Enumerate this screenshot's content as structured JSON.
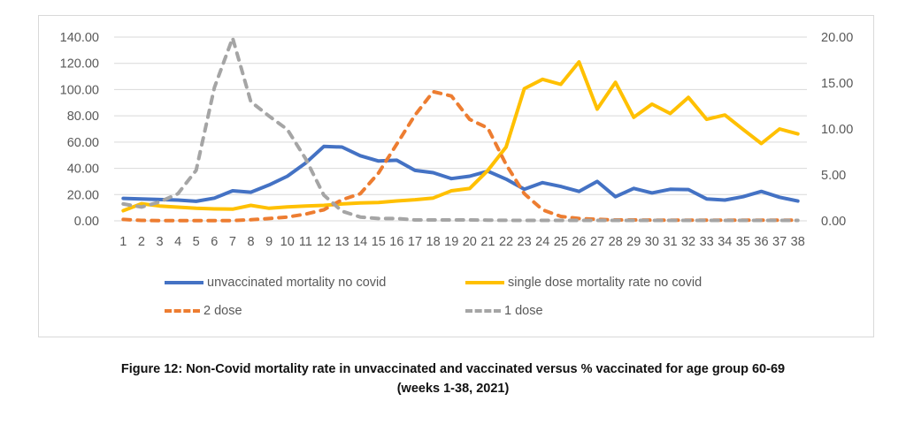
{
  "chart_data": {
    "type": "line",
    "title": "",
    "xlabel": "",
    "ylabel": "",
    "y2label": "",
    "categories": [
      "1",
      "2",
      "3",
      "4",
      "5",
      "6",
      "7",
      "8",
      "9",
      "10",
      "11",
      "12",
      "13",
      "14",
      "15",
      "16",
      "17",
      "18",
      "19",
      "20",
      "21",
      "22",
      "23",
      "24",
      "25",
      "26",
      "27",
      "28",
      "29",
      "30",
      "31",
      "32",
      "33",
      "34",
      "35",
      "36",
      "37",
      "38"
    ],
    "ylim": [
      0,
      140
    ],
    "y2lim": [
      0,
      20
    ],
    "yticks": [
      "0.00",
      "20.00",
      "40.00",
      "60.00",
      "80.00",
      "100.00",
      "120.00",
      "140.00"
    ],
    "y2ticks": [
      "0.00",
      "5.00",
      "10.00",
      "15.00",
      "20.00"
    ],
    "grid": true,
    "legend_position": "bottom",
    "series": [
      {
        "name": "unvaccinated mortality no covid",
        "axis": "left",
        "style": "solid",
        "color": "#4472C4",
        "values": [
          17.1,
          16.7,
          16.2,
          15.8,
          14.9,
          17.3,
          22.9,
          21.8,
          27.3,
          34,
          44,
          56.7,
          56.2,
          49.6,
          45.6,
          46.2,
          38.4,
          36.7,
          32.2,
          34,
          37.8,
          31.8,
          24,
          29.1,
          26.2,
          22.4,
          30,
          18.4,
          24.7,
          21.3,
          24,
          23.8,
          16.7,
          15.8,
          18.4,
          22.4,
          18,
          15.1
        ]
      },
      {
        "name": "single dose mortality rate no covid",
        "axis": "right",
        "style": "solid",
        "color": "#FFC000",
        "values": [
          1.11,
          1.87,
          1.62,
          1.49,
          1.37,
          1.3,
          1.27,
          1.68,
          1.37,
          1.52,
          1.62,
          1.68,
          1.84,
          1.94,
          2.0,
          2.16,
          2.3,
          2.48,
          3.27,
          3.52,
          5.49,
          8.03,
          14.38,
          15.4,
          14.86,
          17.3,
          12.16,
          15.08,
          11.27,
          12.7,
          11.68,
          13.43,
          11.05,
          11.52,
          9.94,
          8.41,
          10.0,
          9.46
        ]
      },
      {
        "name": "2 dose",
        "axis": "right",
        "style": "dashed",
        "color": "#ED7D31",
        "values": [
          0.15,
          0.05,
          0.02,
          0.02,
          0.02,
          0.02,
          0.03,
          0.12,
          0.25,
          0.41,
          0.73,
          1.2,
          2.3,
          2.95,
          5.2,
          8.35,
          11.5,
          14.06,
          13.59,
          11.05,
          10.1,
          6.13,
          2.95,
          1.2,
          0.48,
          0.25,
          0.16,
          0.1,
          0.1,
          0.08,
          0.08,
          0.08,
          0.08,
          0.08,
          0.08,
          0.08,
          0.08,
          0.08
        ]
      },
      {
        "name": "1 dose",
        "axis": "right",
        "style": "dashed",
        "color": "#A5A5A5",
        "values": [
          1.84,
          1.5,
          2.06,
          2.95,
          5.5,
          14.5,
          19.9,
          12.96,
          11.4,
          9.94,
          6.76,
          2.8,
          1.05,
          0.41,
          0.25,
          0.25,
          0.1,
          0.1,
          0.1,
          0.1,
          0.08,
          0.06,
          0.05,
          0.05,
          0.05,
          0.05,
          0.05,
          0.05,
          0.05,
          0.05,
          0.05,
          0.05,
          0.05,
          0.05,
          0.05,
          0.05,
          0.05,
          0.05
        ]
      }
    ]
  },
  "caption": {
    "line1": "Figure 12: Non-Covid mortality rate in unvaccinated and vaccinated versus % vaccinated for age group 60-69",
    "line2": "(weeks 1-38, 2021)"
  }
}
